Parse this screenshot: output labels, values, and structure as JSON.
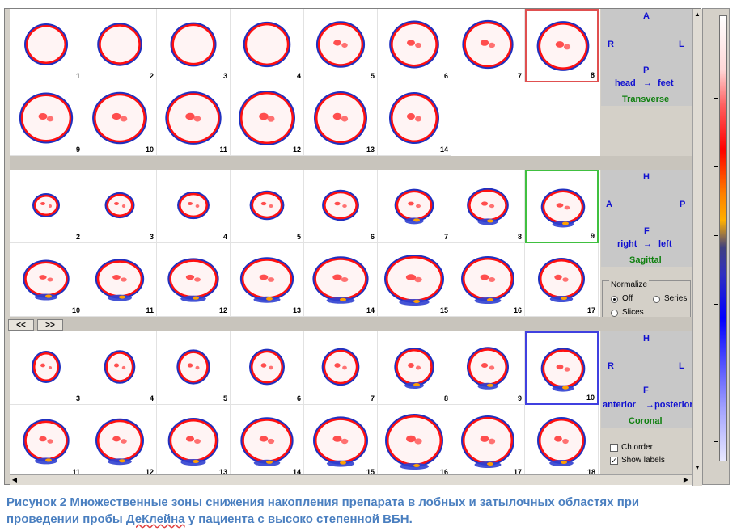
{
  "transverse": {
    "slices": [
      "1",
      "2",
      "3",
      "4",
      "5",
      "6",
      "7",
      "8",
      "9",
      "10",
      "11",
      "12",
      "13",
      "14"
    ],
    "orientation": {
      "top": "A",
      "left": "R",
      "right": "L",
      "bottom": "P",
      "direction_from": "head",
      "direction_to": "feet",
      "arrow": "→",
      "plane": "Transverse"
    }
  },
  "sagittal": {
    "slices": [
      "2",
      "3",
      "4",
      "5",
      "6",
      "7",
      "8",
      "9",
      "10",
      "11",
      "12",
      "13",
      "14",
      "15",
      "16",
      "17"
    ],
    "orientation": {
      "top": "H",
      "left": "A",
      "right": "P",
      "bottom": "F",
      "direction_from": "right",
      "direction_to": "left",
      "arrow": "→",
      "plane": "Sagittal"
    }
  },
  "coronal": {
    "slices": [
      "3",
      "4",
      "5",
      "6",
      "7",
      "8",
      "9",
      "10",
      "11",
      "12",
      "13",
      "14",
      "15",
      "16",
      "17",
      "18"
    ],
    "orientation": {
      "top": "H",
      "left": "R",
      "right": "L",
      "bottom": "F",
      "direction_from": "anterior",
      "direction_to": "posterior",
      "arrow": "→",
      "plane": "Coronal"
    }
  },
  "nav": {
    "prev": "<<",
    "next": ">>"
  },
  "normalize": {
    "title": "Normalize",
    "off": "Off",
    "series": "Series",
    "slices": "Slices",
    "selected": "Off"
  },
  "options": {
    "ch_order": "Ch.order",
    "ch_order_checked": false,
    "show_labels": "Show labels",
    "show_labels_checked": true
  },
  "colors": {
    "selection_red": "#e05050",
    "selection_green": "#40c040",
    "selection_blue": "#4040e0",
    "plane_label": "#108010",
    "orientation_label": "#1010d0"
  },
  "caption": {
    "line1": "Рисунок 2 Множественные зоны снижения накопления препарата в лобных и затылочных областях при",
    "line2_pre": "проведении пробы ",
    "line2_underlined": "ДеКлейна",
    "line2_post": " у пациента с высоко степенной ВБН."
  }
}
